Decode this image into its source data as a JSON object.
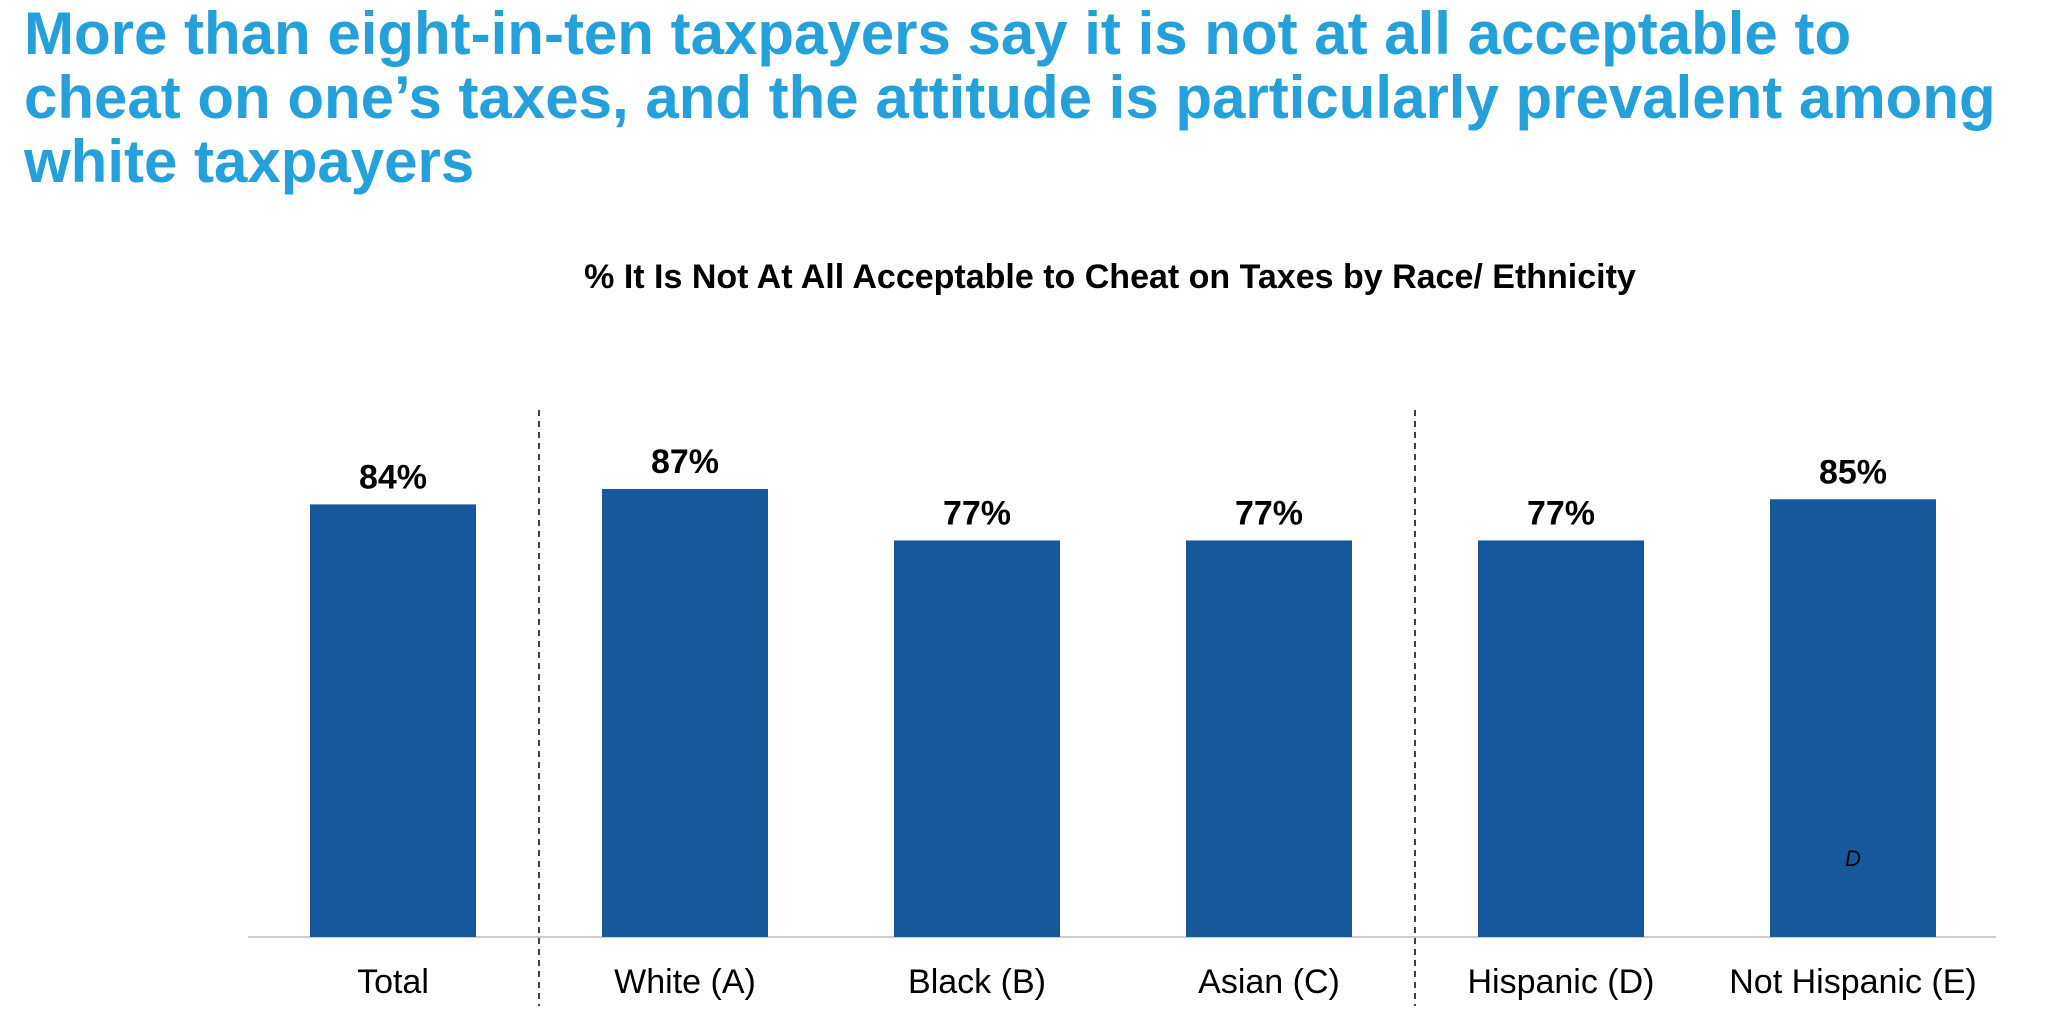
{
  "headline": "More than eight-in-ten taxpayers say it is not at all acceptable to cheat on one’s taxes, and the attitude is particularly prevalent among white taxpayers",
  "chart_data": {
    "type": "bar",
    "title": "% It Is Not At All Acceptable to Cheat on Taxes by Race/ Ethnicity",
    "categories": [
      "Total",
      "White (A)",
      "Black (B)",
      "Asian (C)",
      "Hispanic (D)",
      "Not Hispanic (E)"
    ],
    "values": [
      84,
      87,
      77,
      77,
      77,
      85
    ],
    "value_labels": [
      "84%",
      "87%",
      "77%",
      "77%",
      "77%",
      "85%"
    ],
    "significance": [
      "",
      "",
      "",
      "",
      "",
      "D"
    ],
    "group_separators_after": [
      0,
      3
    ],
    "ylim": [
      0,
      100
    ],
    "xlabel": "",
    "ylabel": "",
    "grid": false,
    "bar_color": "#16589a",
    "axis_color": "#cccccc"
  }
}
